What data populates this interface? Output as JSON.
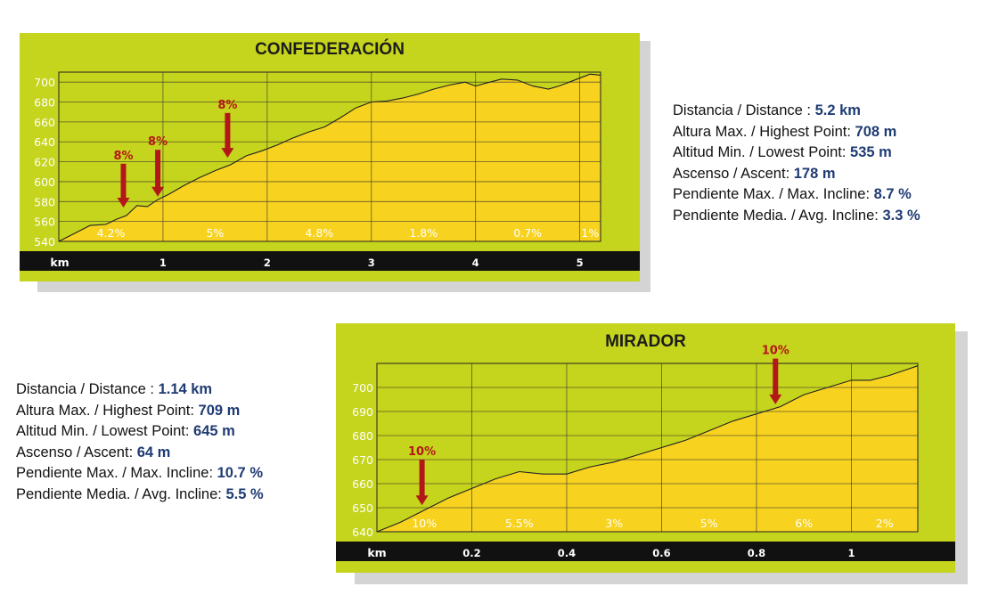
{
  "chart_data": [
    {
      "type": "area",
      "title": "CONFEDERACIÓN",
      "xlabel": "km",
      "x_ticks": [
        "1",
        "2",
        "3",
        "4",
        "5"
      ],
      "xlim": [
        0,
        5.2
      ],
      "ylim": [
        540,
        710
      ],
      "y_ticks": [
        "540",
        "560",
        "580",
        "600",
        "620",
        "640",
        "660",
        "680",
        "700"
      ],
      "fill_color": "#f7d21f",
      "plot_bg": "#c5d41c",
      "profile": {
        "x": [
          0,
          0.15,
          0.3,
          0.45,
          0.55,
          0.65,
          0.75,
          0.85,
          0.95,
          1.05,
          1.2,
          1.35,
          1.5,
          1.65,
          1.8,
          1.95,
          2.1,
          2.25,
          2.4,
          2.55,
          2.7,
          2.85,
          3.0,
          3.15,
          3.3,
          3.45,
          3.6,
          3.75,
          3.9,
          4.0,
          4.1,
          4.25,
          4.4,
          4.55,
          4.7,
          4.8,
          4.9,
          5.0,
          5.1,
          5.2
        ],
        "y": [
          540,
          548,
          556,
          557,
          562,
          566,
          576,
          575,
          582,
          587,
          596,
          604,
          611,
          617,
          626,
          631,
          637,
          644,
          650,
          655,
          664,
          674,
          680,
          681,
          684,
          688,
          693,
          697,
          700,
          696,
          699,
          703,
          702,
          696,
          693,
          696,
          700,
          704,
          708,
          707
        ]
      },
      "segments": [
        {
          "from": 0,
          "to": 1,
          "label": "4.2%"
        },
        {
          "from": 1,
          "to": 2,
          "label": "5%"
        },
        {
          "from": 2,
          "to": 3,
          "label": "4.8%"
        },
        {
          "from": 3,
          "to": 4,
          "label": "1.8%"
        },
        {
          "from": 4,
          "to": 5,
          "label": "0.7%"
        },
        {
          "from": 5,
          "to": 5.2,
          "label": "1%"
        }
      ],
      "markers": [
        {
          "x": 0.62,
          "label": "8%",
          "y_top": 618,
          "y_bottom": 574
        },
        {
          "x": 0.95,
          "label": "8%",
          "y_top": 632,
          "y_bottom": 585
        },
        {
          "x": 1.62,
          "label": "8%",
          "y_top": 669,
          "y_bottom": 624
        }
      ]
    },
    {
      "type": "area",
      "title": "MIRADOR",
      "xlabel": "km",
      "x_ticks": [
        "0.2",
        "0.4",
        "0.6",
        "0.8",
        "1"
      ],
      "xlim": [
        0,
        1.14
      ],
      "ylim": [
        640,
        710
      ],
      "y_ticks": [
        "640",
        "650",
        "660",
        "670",
        "680",
        "690",
        "700"
      ],
      "fill_color": "#f7d21f",
      "plot_bg": "#c5d41c",
      "profile": {
        "x": [
          0,
          0.05,
          0.1,
          0.15,
          0.2,
          0.25,
          0.3,
          0.35,
          0.4,
          0.45,
          0.5,
          0.55,
          0.6,
          0.65,
          0.7,
          0.75,
          0.8,
          0.85,
          0.9,
          0.95,
          1.0,
          1.04,
          1.08,
          1.11,
          1.14
        ],
        "y": [
          640,
          644,
          649,
          654,
          658,
          662,
          665,
          664,
          664,
          667,
          669,
          672,
          675,
          678,
          682,
          686,
          689,
          692,
          697,
          700,
          703,
          703,
          705,
          707,
          709
        ]
      },
      "segments": [
        {
          "from": 0,
          "to": 0.2,
          "label": "10%"
        },
        {
          "from": 0.2,
          "to": 0.4,
          "label": "5.5%"
        },
        {
          "from": 0.4,
          "to": 0.6,
          "label": "3%"
        },
        {
          "from": 0.6,
          "to": 0.8,
          "label": "5%"
        },
        {
          "from": 0.8,
          "to": 1.0,
          "label": "6%"
        },
        {
          "from": 1.0,
          "to": 1.14,
          "label": "2%"
        }
      ],
      "markers": [
        {
          "x": 0.095,
          "label": "10%",
          "y_top": 670,
          "y_bottom": 651
        },
        {
          "x": 0.84,
          "label": "10%",
          "y_top": 712,
          "y_bottom": 693
        }
      ]
    }
  ],
  "stats": [
    {
      "rows": [
        {
          "label": "Distancia / Distance : ",
          "value": "5.2 km"
        },
        {
          "label": "Altura Max. / Highest Point: ",
          "value": "708 m"
        },
        {
          "label": "Altitud Min. / Lowest Point: ",
          "value": "535 m"
        },
        {
          "label": "Ascenso / Ascent: ",
          "value": "178 m"
        },
        {
          "label": "Pendiente Max. / Max. Incline: ",
          "value": "8.7 %"
        },
        {
          "label": "Pendiente Media. / Avg. Incline: ",
          "value": "3.3 %"
        }
      ]
    },
    {
      "rows": [
        {
          "label": "Distancia / Distance : ",
          "value": "1.14 km"
        },
        {
          "label": "Altura Max. / Highest Point: ",
          "value": "709 m"
        },
        {
          "label": "Altitud Min. / Lowest Point: ",
          "value": "645 m"
        },
        {
          "label": "Ascenso / Ascent: ",
          "value": "64 m"
        },
        {
          "label": "Pendiente Max. / Max. Incline: ",
          "value": "10.7 %"
        },
        {
          "label": "Pendiente Media. / Avg. Incline: ",
          "value": "5.5 %"
        }
      ]
    }
  ]
}
